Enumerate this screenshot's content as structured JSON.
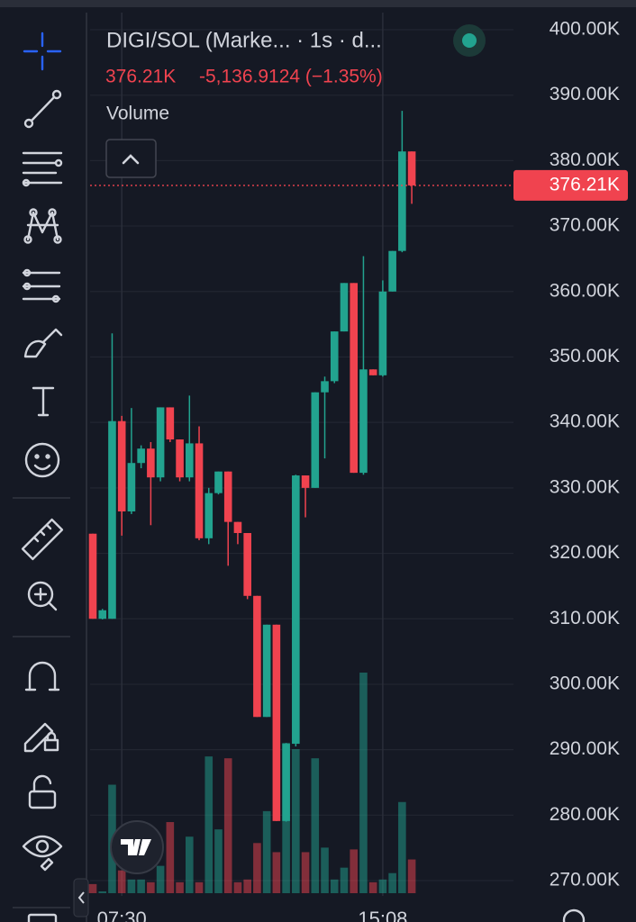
{
  "header": {
    "symbol": "DIGI/SOL (Marke... · 1s · d...",
    "change": "-5,136.9124 (−1.35%)",
    "indicator": "Volume"
  },
  "chart_data": {
    "type": "candlestick",
    "categories": [
      null,
      null,
      null,
      "07:30",
      null,
      null,
      null,
      null,
      null,
      null,
      null,
      null,
      null,
      null,
      null,
      null,
      null,
      null,
      null,
      null,
      null,
      null,
      null,
      null,
      null,
      null,
      null,
      null,
      null,
      null,
      "15:08",
      null,
      null,
      null
    ],
    "open": [
      323,
      310,
      310,
      340.2,
      326.4,
      333.8,
      336,
      331.6,
      342.3,
      337.4,
      331.6,
      336.8,
      322.3,
      329.2,
      332.5,
      324.8,
      323.1,
      313.5,
      295,
      309.1,
      279.1,
      290.9,
      331.9,
      330,
      344.6,
      346.3,
      353.9,
      361.3,
      332.3,
      348.1,
      347.2,
      360,
      366.2,
      381.4
    ],
    "high": [
      323,
      311.5,
      353.6,
      341,
      342.2,
      336.5,
      337,
      342.3,
      342.3,
      337.4,
      344.1,
      339.4,
      330,
      332.5,
      332.5,
      324.8,
      323.1,
      313.5,
      309.1,
      309.1,
      291,
      332,
      331.9,
      344.6,
      347,
      353.9,
      361.3,
      361.3,
      365.4,
      348.1,
      361.7,
      366.2,
      387.6,
      381.4
    ],
    "low": [
      310,
      309.9,
      310,
      322.7,
      326,
      333,
      324.3,
      331,
      337,
      331,
      331,
      322,
      321.4,
      329,
      318.1,
      321.4,
      313,
      295,
      295,
      279.1,
      279,
      290.5,
      325.5,
      330,
      334.5,
      346,
      353.9,
      332.3,
      332,
      347.2,
      347,
      360,
      366,
      373.4
    ],
    "close": [
      310,
      311.3,
      340.2,
      326.4,
      333.8,
      336,
      331.6,
      342.3,
      337.4,
      331.6,
      336.8,
      322.3,
      329.2,
      332.5,
      324.8,
      323.1,
      313.5,
      295,
      309.1,
      279.1,
      290.9,
      331.9,
      330,
      344.6,
      346.3,
      353.9,
      361.3,
      332.3,
      348.1,
      347.2,
      360,
      366.2,
      381.4,
      376.21
    ],
    "volume": [
      10,
      2,
      119,
      25,
      15,
      15,
      12,
      30,
      78,
      12,
      62,
      12,
      150,
      70,
      148,
      12,
      15,
      55,
      90,
      45,
      165,
      158,
      45,
      148,
      50,
      15,
      28,
      48,
      242,
      12,
      15,
      22,
      100,
      37
    ],
    "up_color": "#22a38f",
    "down_color": "#f0434f",
    "last_price": {
      "value": 376.21,
      "label": "376.21K"
    },
    "ylim": [
      270,
      400
    ],
    "yticks": [
      {
        "value": 270,
        "label": "270.00K"
      },
      {
        "value": 280,
        "label": "280.00K"
      },
      {
        "value": 290,
        "label": "290.00K"
      },
      {
        "value": 300,
        "label": "300.00K"
      },
      {
        "value": 310,
        "label": "310.00K"
      },
      {
        "value": 320,
        "label": "320.00K"
      },
      {
        "value": 330,
        "label": "330.00K"
      },
      {
        "value": 340,
        "label": "340.00K"
      },
      {
        "value": 350,
        "label": "350.00K"
      },
      {
        "value": 360,
        "label": "360.00K"
      },
      {
        "value": 370,
        "label": "370.00K"
      },
      {
        "value": 380,
        "label": "380.00K"
      },
      {
        "value": 390,
        "label": "390.00K"
      },
      {
        "value": 400,
        "label": "400.00K"
      }
    ],
    "grid": true
  }
}
